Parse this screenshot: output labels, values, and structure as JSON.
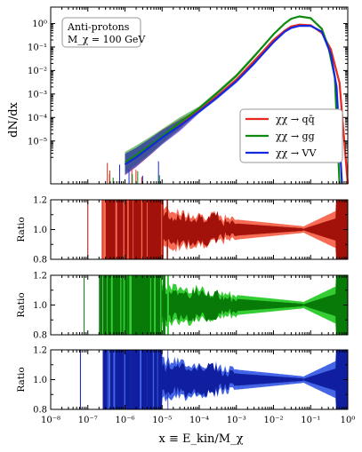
{
  "chart_data": [
    {
      "panel": "main",
      "type": "line",
      "ylabel": "dN/dx",
      "yscale": "log",
      "xscale": "log",
      "xlim": [
        1e-08,
        1
      ],
      "ylim": [
        1.5e-07,
        5
      ],
      "y_ticks": [
        "10^0",
        "10^-1",
        "10^-2",
        "10^-3",
        "10^-4",
        "10^-5"
      ],
      "annotation": [
        "Anti-protons",
        "M_χ = 100 GeV"
      ],
      "legend_position": "center-right",
      "series": [
        {
          "name": "χχ → qq̄",
          "color": "#e8281e",
          "x": [
            1e-06,
            2e-06,
            5e-06,
            1e-05,
            3e-05,
            0.0001,
            0.0003,
            0.001,
            0.003,
            0.01,
            0.02,
            0.03,
            0.05,
            0.1,
            0.2,
            0.35,
            0.6,
            1.0
          ],
          "y": [
            1e-06,
            2e-06,
            6e-06,
            1.5e-05,
            5e-05,
            0.0002,
            0.0008,
            0.004,
            0.025,
            0.2,
            0.5,
            0.75,
            0.9,
            0.85,
            0.4,
            0.08,
            0.003,
            1e-07
          ]
        },
        {
          "name": "χχ → gg",
          "color": "#0f8a0f",
          "x": [
            1e-06,
            2e-06,
            5e-06,
            1e-05,
            3e-05,
            0.0001,
            0.0003,
            0.001,
            0.003,
            0.01,
            0.02,
            0.03,
            0.05,
            0.1,
            0.2,
            0.3,
            0.45,
            0.6
          ],
          "y": [
            1.2e-06,
            2.5e-06,
            7e-06,
            1.6e-05,
            6e-05,
            0.00025,
            0.0011,
            0.006,
            0.04,
            0.35,
            1.0,
            1.6,
            2.0,
            1.7,
            0.6,
            0.1,
            0.005,
            1e-07
          ]
        },
        {
          "name": "χχ → VV",
          "color": "#1428e0",
          "x": [
            1e-06,
            2e-06,
            5e-06,
            1e-05,
            3e-05,
            0.0001,
            0.0003,
            0.001,
            0.003,
            0.01,
            0.02,
            0.03,
            0.05,
            0.1,
            0.2,
            0.35,
            0.5,
            0.7
          ],
          "y": [
            1e-06,
            2e-06,
            6e-06,
            1.4e-05,
            4.5e-05,
            0.00018,
            0.0007,
            0.0035,
            0.02,
            0.16,
            0.45,
            0.65,
            0.8,
            0.8,
            0.45,
            0.05,
            0.002,
            1e-07
          ]
        }
      ]
    },
    {
      "panel": "ratio_qq",
      "type": "area",
      "ylabel": "Ratio",
      "ylim": [
        0.8,
        1.2
      ],
      "y_ticks": [
        "0.8",
        "1.0",
        "1.2"
      ],
      "colors": {
        "outer": "#f66c55",
        "inner": "#a3120a"
      }
    },
    {
      "panel": "ratio_gg",
      "type": "area",
      "ylabel": "Ratio",
      "ylim": [
        0.8,
        1.2
      ],
      "y_ticks": [
        "0.8",
        "1.0",
        "1.2"
      ],
      "colors": {
        "outer": "#34cd34",
        "inner": "#077a07"
      }
    },
    {
      "panel": "ratio_vv",
      "type": "area",
      "ylabel": "Ratio",
      "ylim": [
        0.8,
        1.2
      ],
      "y_ticks": [
        "0.8",
        "1.0",
        "1.2"
      ],
      "xlabel": "x ≡ E_kin/M_χ",
      "x_ticks": [
        "10^-8",
        "10^-7",
        "10^-6",
        "10^-5",
        "10^-4",
        "10^-3",
        "10^-2",
        "10^-1",
        "10^0"
      ],
      "colors": {
        "outer": "#4466e6",
        "inner": "#0f1fa0"
      }
    }
  ]
}
